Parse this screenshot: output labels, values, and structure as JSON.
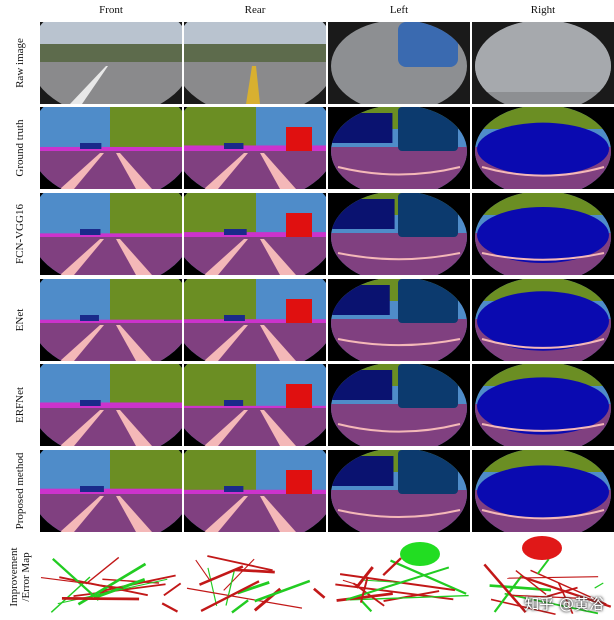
{
  "columns": [
    "Front",
    "Rear",
    "Left",
    "Right"
  ],
  "rows": [
    "Raw image",
    "Ground truth",
    "FCN-VGG16",
    "ENet",
    "ERFNet",
    "Proposed method",
    "Improvement /Error Map"
  ],
  "watermark": "知乎 @黄浴"
}
